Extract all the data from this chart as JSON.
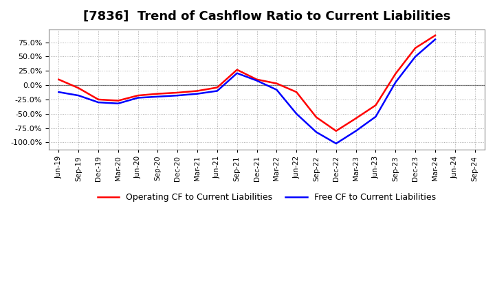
{
  "title": "[7836]  Trend of Cashflow Ratio to Current Liabilities",
  "x_labels": [
    "Jun-19",
    "Sep-19",
    "Dec-19",
    "Mar-20",
    "Jun-20",
    "Sep-20",
    "Dec-20",
    "Mar-21",
    "Jun-21",
    "Sep-21",
    "Dec-21",
    "Mar-22",
    "Jun-22",
    "Sep-22",
    "Dec-22",
    "Mar-23",
    "Jun-23",
    "Sep-23",
    "Dec-23",
    "Mar-24",
    "Jun-24",
    "Sep-24"
  ],
  "operating_cf": [
    0.1,
    -0.05,
    -0.25,
    -0.27,
    -0.18,
    -0.15,
    -0.13,
    -0.1,
    -0.04,
    0.27,
    0.1,
    0.03,
    -0.12,
    -0.56,
    -0.8,
    -0.58,
    -0.35,
    0.2,
    0.65,
    0.87,
    null,
    null
  ],
  "free_cf": [
    -0.12,
    -0.18,
    -0.3,
    -0.32,
    -0.22,
    -0.2,
    -0.18,
    -0.15,
    -0.1,
    0.21,
    0.08,
    -0.08,
    -0.5,
    -0.82,
    -1.02,
    -0.8,
    -0.55,
    0.05,
    0.5,
    0.8,
    null,
    null
  ],
  "ylim": [
    -1.125,
    0.975
  ],
  "yticks": [
    -1.0,
    -0.75,
    -0.5,
    -0.25,
    0.0,
    0.25,
    0.5,
    0.75
  ],
  "operating_color": "#FF0000",
  "free_color": "#0000FF",
  "background_color": "#FFFFFF",
  "grid_color": "#AAAAAA",
  "line_width": 1.8,
  "title_fontsize": 13
}
